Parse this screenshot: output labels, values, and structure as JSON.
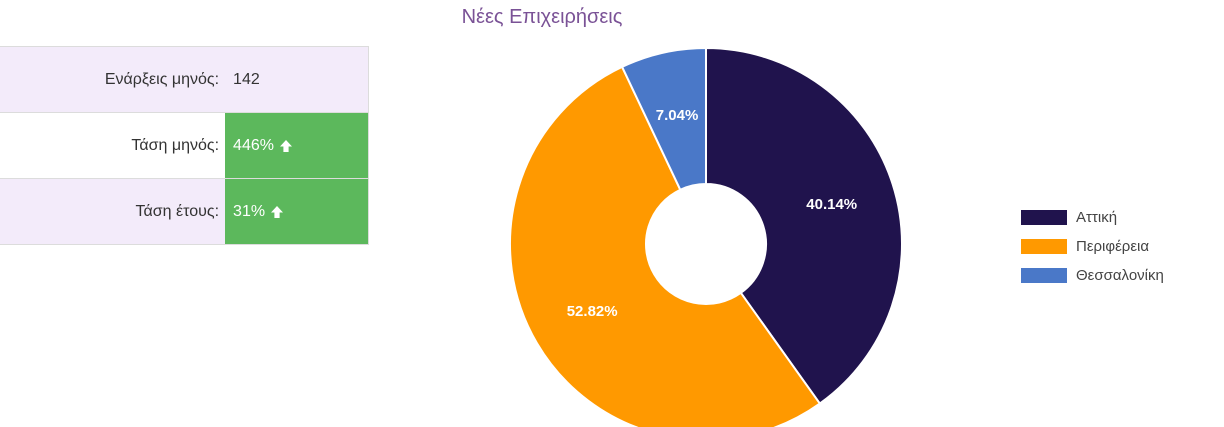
{
  "stats": [
    {
      "label": "Ενάρξεις μηνός:",
      "value": "142",
      "trend": "none"
    },
    {
      "label": "Τάση μηνός:",
      "value": "446%",
      "trend": "up"
    },
    {
      "label": "Τάση έτους:",
      "value": "31%",
      "trend": "up"
    }
  ],
  "colors": {
    "attiki": "#20134d",
    "periferia": "#ff9900",
    "thessaloniki": "#4a78c8",
    "trend_good": "#5cb85c",
    "row_shade": "#f3ebfa",
    "title": "#7a5296"
  },
  "icons": {
    "trend_up": "arrow-up-icon"
  },
  "chart_data": {
    "type": "pie",
    "title": "Νέες Επιχειρήσεις",
    "donut": true,
    "legend_position": "right",
    "categories": [
      "Αττική",
      "Περιφέρεια",
      "Θεσσαλονίκη"
    ],
    "values": [
      40.14,
      52.82,
      7.04
    ],
    "labels": [
      "40.14%",
      "52.82%",
      "7.04%"
    ]
  }
}
